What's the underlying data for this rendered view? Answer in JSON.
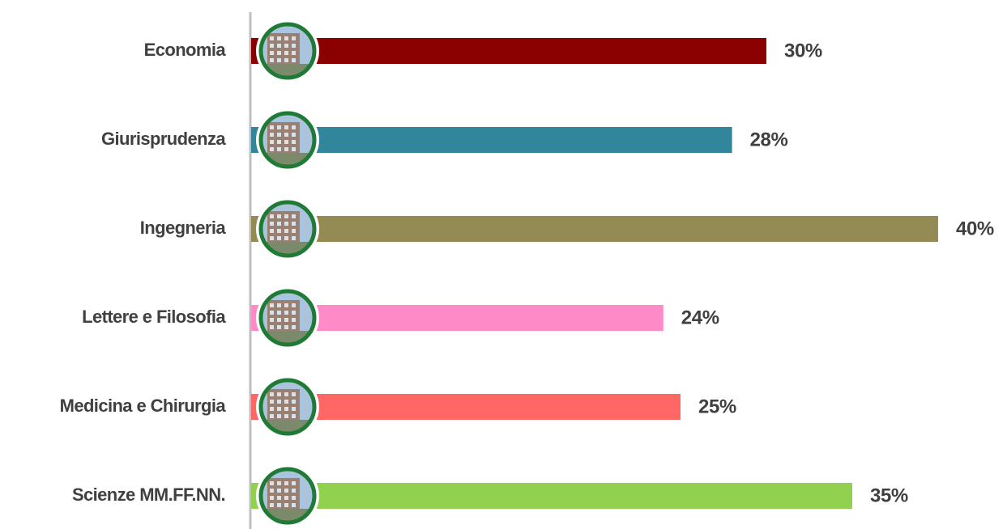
{
  "chart_data": {
    "type": "bar",
    "categories": [
      "Economia",
      "Giurisprudenza",
      "Ingegneria",
      "Lettere e Filosofia",
      "Medicina e Chirurgia",
      "Scienze MM.FF.NN."
    ],
    "values": [
      30,
      28,
      40,
      24,
      25,
      35
    ],
    "value_labels": [
      "30%",
      "28%",
      "40%",
      "24%",
      "25%",
      "35%"
    ],
    "colors": [
      "#8b0000",
      "#31869b",
      "#948a54",
      "#ff8ac8",
      "#ff6666",
      "#92d050"
    ]
  }
}
